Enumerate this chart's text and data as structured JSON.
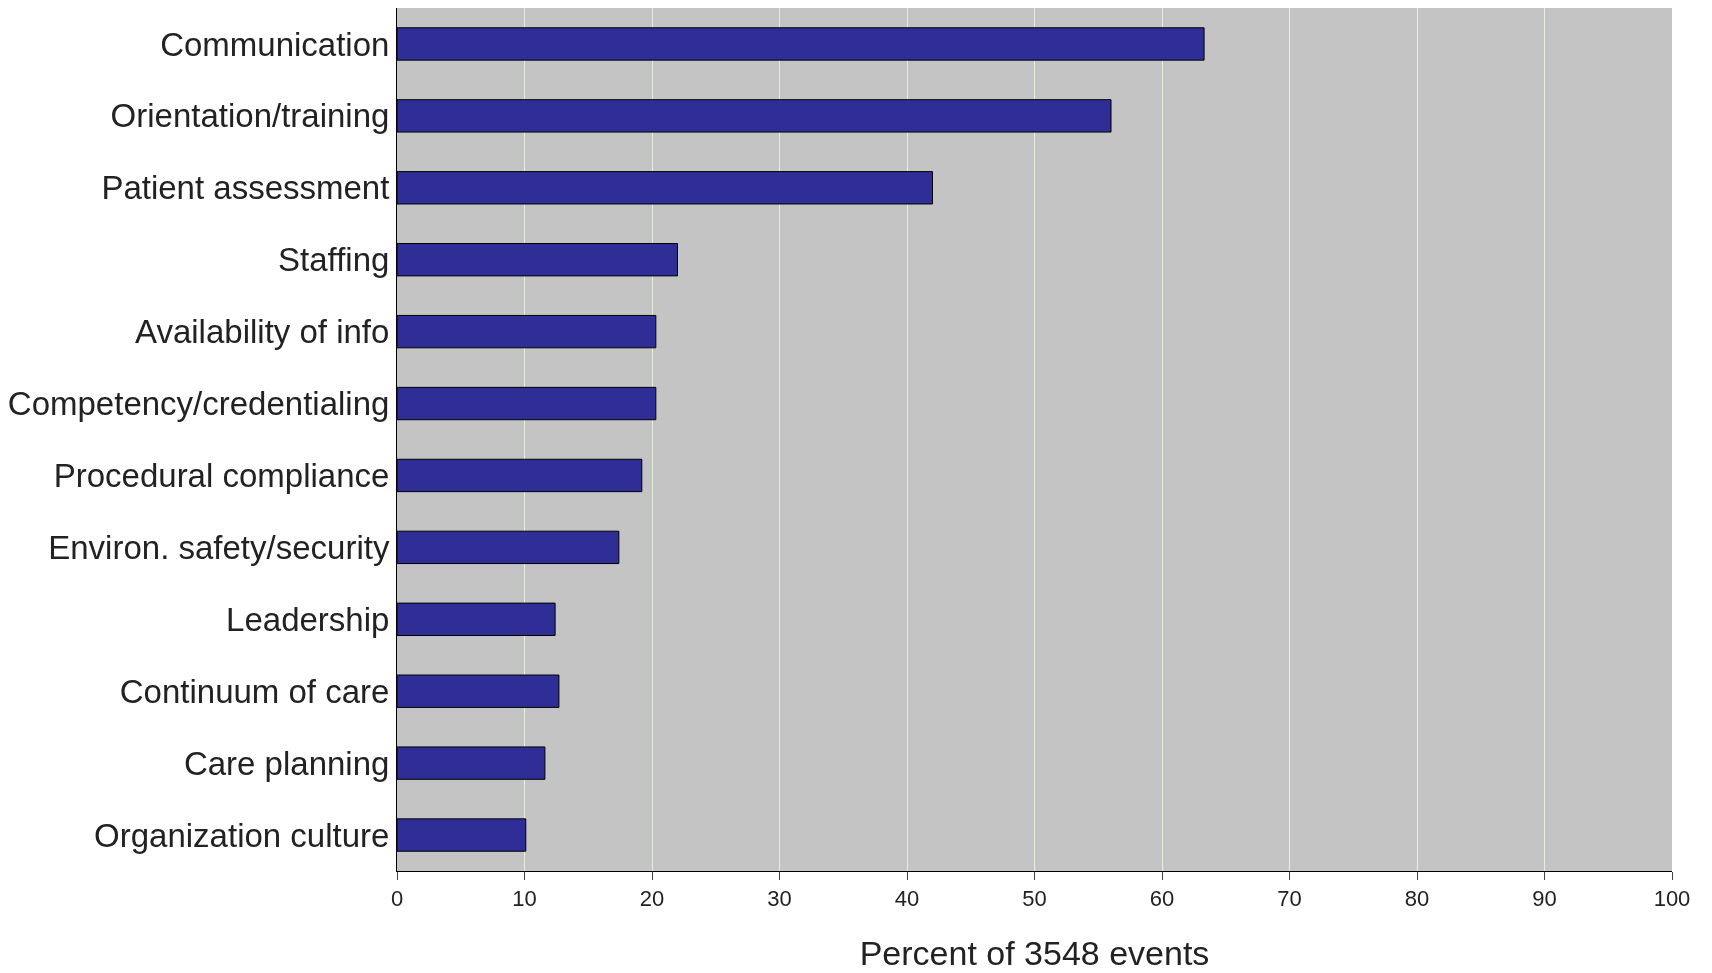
{
  "chart_data": {
    "type": "bar",
    "orientation": "horizontal",
    "categories": [
      "Communication",
      "Orientation/training",
      "Patient assessment",
      "Staffing",
      "Availability of info",
      "Competency/credentialing",
      "Procedural compliance",
      "Environ. safety/security",
      "Leadership",
      "Continuum of care",
      "Care planning",
      "Organization culture"
    ],
    "values": [
      63.3,
      56,
      42,
      22,
      20.3,
      20.3,
      19.2,
      17.4,
      12.4,
      12.7,
      11.6,
      10.1
    ],
    "color": "#2e2e96",
    "xlabel": "Percent of 3548 events",
    "xlim": [
      0,
      100
    ],
    "xticks": [
      0,
      10,
      20,
      30,
      40,
      50,
      60,
      70,
      80,
      90,
      100
    ],
    "grid": "x"
  }
}
